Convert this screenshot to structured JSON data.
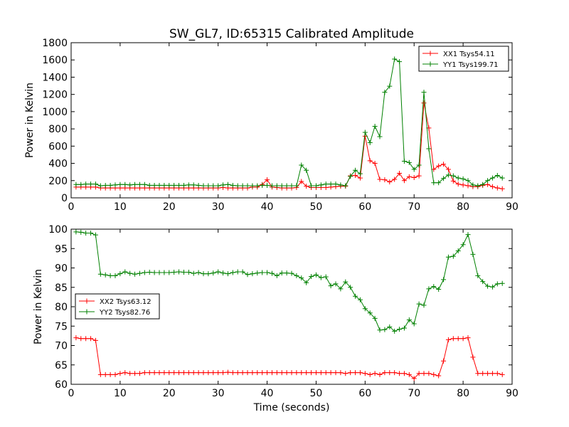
{
  "title": "SW_GL7, ID:65315 Calibrated Amplitude",
  "chart_data": [
    {
      "type": "line",
      "title": "SW_GL7, ID:65315 Calibrated Amplitude",
      "xlabel": "",
      "ylabel": "Power in Kelvin",
      "xlim": [
        0,
        90
      ],
      "ylim": [
        0,
        1800
      ],
      "xticks": [
        "0",
        "10",
        "20",
        "30",
        "40",
        "50",
        "60",
        "70",
        "80",
        "90"
      ],
      "yticks": [
        "0",
        "200",
        "400",
        "600",
        "800",
        "1000",
        "1200",
        "1400",
        "1600",
        "1800"
      ],
      "grid": false,
      "legend_position": "upper right",
      "x": [
        1,
        2,
        3,
        4,
        5,
        6,
        7,
        8,
        9,
        10,
        11,
        12,
        13,
        14,
        15,
        16,
        17,
        18,
        19,
        20,
        21,
        22,
        23,
        24,
        25,
        26,
        27,
        28,
        29,
        30,
        31,
        32,
        33,
        34,
        35,
        36,
        37,
        38,
        39,
        40,
        41,
        42,
        43,
        44,
        45,
        46,
        47,
        48,
        49,
        50,
        51,
        52,
        53,
        54,
        55,
        56,
        57,
        58,
        59,
        60,
        61,
        62,
        63,
        64,
        65,
        66,
        67,
        68,
        69,
        70,
        71,
        72,
        73,
        74,
        75,
        76,
        77,
        78,
        79,
        80,
        81,
        82,
        83,
        84,
        85,
        86,
        87,
        88
      ],
      "series": [
        {
          "name": "XX1 Tsys54.11",
          "color": "#ff0000",
          "values": [
            125,
            125,
            125,
            125,
            125,
            115,
            115,
            115,
            115,
            115,
            115,
            115,
            115,
            115,
            115,
            115,
            115,
            115,
            115,
            115,
            115,
            115,
            115,
            115,
            115,
            115,
            115,
            115,
            115,
            115,
            120,
            115,
            115,
            115,
            115,
            115,
            125,
            125,
            155,
            210,
            125,
            120,
            115,
            115,
            115,
            120,
            190,
            135,
            120,
            120,
            120,
            120,
            125,
            130,
            135,
            135,
            255,
            260,
            230,
            715,
            430,
            400,
            215,
            210,
            185,
            215,
            285,
            200,
            245,
            235,
            255,
            1100,
            810,
            330,
            370,
            390,
            330,
            195,
            160,
            150,
            140,
            130,
            130,
            145,
            155,
            130,
            115,
            105
          ]
        },
        {
          "name": "YY1 Tsys199.71",
          "color": "#008000",
          "values": [
            155,
            155,
            160,
            160,
            160,
            140,
            145,
            145,
            150,
            155,
            155,
            150,
            155,
            155,
            155,
            145,
            145,
            145,
            145,
            145,
            145,
            145,
            145,
            150,
            150,
            145,
            140,
            140,
            140,
            140,
            150,
            155,
            145,
            140,
            140,
            140,
            140,
            140,
            145,
            145,
            140,
            140,
            140,
            140,
            140,
            140,
            380,
            320,
            140,
            140,
            150,
            160,
            160,
            160,
            150,
            140,
            250,
            320,
            280,
            760,
            640,
            830,
            710,
            1225,
            1295,
            1610,
            1580,
            425,
            410,
            330,
            380,
            1225,
            570,
            175,
            175,
            225,
            265,
            255,
            230,
            220,
            200,
            150,
            140,
            155,
            200,
            230,
            260,
            230
          ]
        }
      ]
    },
    {
      "type": "line",
      "title": "",
      "xlabel": "Time (seconds)",
      "ylabel": "Power in Kelvin",
      "xlim": [
        0,
        90
      ],
      "ylim": [
        60,
        100
      ],
      "xticks": [
        "0",
        "10",
        "20",
        "30",
        "40",
        "50",
        "60",
        "70",
        "80",
        "90"
      ],
      "yticks": [
        "60",
        "65",
        "70",
        "75",
        "80",
        "85",
        "90",
        "95",
        "100"
      ],
      "grid": false,
      "legend_position": "center left",
      "x": [
        1,
        2,
        3,
        4,
        5,
        6,
        7,
        8,
        9,
        10,
        11,
        12,
        13,
        14,
        15,
        16,
        17,
        18,
        19,
        20,
        21,
        22,
        23,
        24,
        25,
        26,
        27,
        28,
        29,
        30,
        31,
        32,
        33,
        34,
        35,
        36,
        37,
        38,
        39,
        40,
        41,
        42,
        43,
        44,
        45,
        46,
        47,
        48,
        49,
        50,
        51,
        52,
        53,
        54,
        55,
        56,
        57,
        58,
        59,
        60,
        61,
        62,
        63,
        64,
        65,
        66,
        67,
        68,
        69,
        70,
        71,
        72,
        73,
        74,
        75,
        76,
        77,
        78,
        79,
        80,
        81,
        82,
        83,
        84,
        85,
        86,
        87,
        88
      ],
      "series": [
        {
          "name": "XX2 Tsys63.12",
          "color": "#ff0000",
          "values": [
            72,
            71.8,
            71.8,
            71.8,
            71.3,
            62.5,
            62.5,
            62.5,
            62.5,
            62.8,
            63,
            62.8,
            62.8,
            62.8,
            63,
            63,
            63,
            63,
            63,
            63,
            63,
            63,
            63,
            63,
            63,
            63,
            63,
            63,
            63,
            63,
            63,
            63.1,
            63,
            63,
            63,
            63,
            63,
            63,
            63,
            63,
            63,
            63,
            63,
            63,
            63,
            63,
            63,
            63,
            63,
            63,
            63,
            63,
            63,
            63,
            63,
            62.8,
            63,
            63,
            63,
            62.8,
            62.5,
            62.8,
            62.5,
            63,
            63,
            63,
            62.8,
            62.8,
            62.5,
            61.5,
            62.8,
            62.8,
            62.8,
            62.5,
            62.2,
            66,
            71.5,
            71.8,
            71.8,
            71.8,
            72,
            67,
            62.8,
            62.8,
            62.8,
            62.8,
            62.8,
            62.5
          ]
        },
        {
          "name": "YY2 Tsys82.76",
          "color": "#008000",
          "values": [
            99.3,
            99.2,
            99,
            99,
            98.5,
            88.4,
            88.2,
            88,
            88,
            88.5,
            89,
            88.6,
            88.4,
            88.6,
            88.8,
            88.9,
            88.8,
            88.8,
            88.8,
            88.8,
            88.9,
            89,
            88.9,
            88.9,
            88.6,
            88.8,
            88.5,
            88.5,
            88.7,
            89,
            88.7,
            88.5,
            88.8,
            89,
            89,
            88.3,
            88.5,
            88.7,
            88.8,
            88.8,
            88.6,
            88,
            88.7,
            88.7,
            88.6,
            88,
            87.4,
            86.2,
            87.8,
            88.2,
            87.5,
            87.7,
            85.4,
            85.9,
            84.6,
            86.4,
            85,
            82.7,
            81.8,
            79.5,
            78.4,
            77,
            74,
            74.1,
            74.8,
            73.7,
            74.2,
            74.5,
            76.6,
            75.6,
            80.7,
            80.4,
            84.6,
            85.2,
            84.5,
            87,
            92.8,
            93,
            94.4,
            96,
            98.6,
            93.5,
            88,
            86.5,
            85.3,
            85.1,
            85.9,
            86
          ]
        }
      ]
    }
  ]
}
